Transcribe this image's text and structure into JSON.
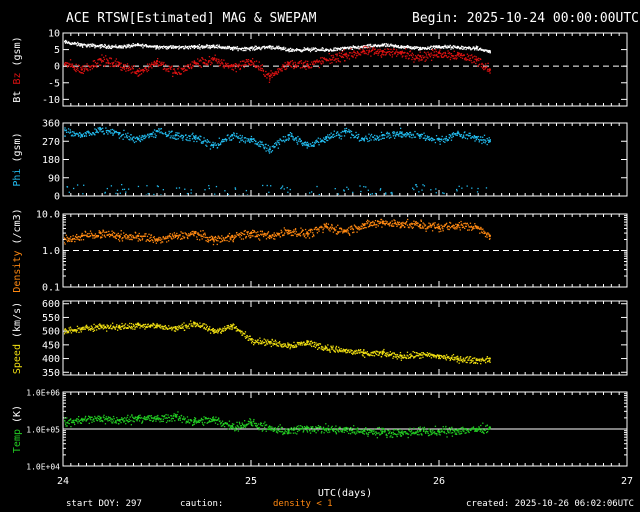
{
  "header": {
    "title": "ACE RTSW[Estimated] MAG & SWEPAM",
    "begin": "Begin: 2025-10-24 00:00:00UTC"
  },
  "footer": {
    "start_doy": "start DOY: 297",
    "caution": "caution:",
    "caution_note": "density < 1",
    "created": "created: 2025-10-26 06:02:06UTC"
  },
  "colors": {
    "bt": "#ffffff",
    "bz": "#dd1111",
    "phi": "#22bbee",
    "density": "#ff8811",
    "speed": "#eedd11",
    "temp": "#22cc22",
    "axes": "#ffffff",
    "caution_note": "#ff8811"
  },
  "chart_data": [
    {
      "type": "scatter",
      "panel": "mag",
      "ylabel_parts": [
        "Bt",
        "Bz",
        "(gsm)"
      ],
      "ylim": [
        -12,
        10
      ],
      "yticks": [
        "10",
        "5",
        "0",
        "-5",
        "-10"
      ],
      "ytick_values": [
        10,
        5,
        0,
        -5,
        -10
      ],
      "reference_line": 0,
      "series": [
        {
          "name": "Bt",
          "x": [
            24.0,
            24.1,
            24.2,
            24.3,
            24.4,
            24.5,
            24.6,
            24.7,
            24.8,
            24.9,
            25.0,
            25.1,
            25.2,
            25.3,
            25.4,
            25.5,
            25.6,
            25.7,
            25.8,
            25.9,
            26.0,
            26.1,
            26.2,
            26.27
          ],
          "y": [
            7.5,
            6.5,
            6.2,
            6.0,
            6.5,
            6.0,
            5.8,
            6.0,
            6.2,
            5.5,
            5.5,
            6.0,
            5.0,
            5.2,
            5.0,
            5.5,
            6.0,
            6.5,
            6.0,
            5.5,
            6.0,
            5.8,
            5.5,
            4.5
          ]
        },
        {
          "name": "Bz",
          "x": [
            24.0,
            24.1,
            24.2,
            24.3,
            24.4,
            24.5,
            24.6,
            24.7,
            24.8,
            24.9,
            25.0,
            25.1,
            25.2,
            25.3,
            25.4,
            25.5,
            25.6,
            25.7,
            25.8,
            25.9,
            26.0,
            26.1,
            26.2,
            26.27
          ],
          "y": [
            1.0,
            -1.0,
            2.0,
            0.5,
            -1.5,
            1.5,
            -2.0,
            1.0,
            2.0,
            0.0,
            1.5,
            -3.0,
            1.0,
            0.5,
            2.0,
            3.5,
            4.5,
            4.5,
            4.0,
            3.0,
            4.0,
            3.5,
            2.0,
            -1.0
          ]
        }
      ]
    },
    {
      "type": "scatter",
      "panel": "phi",
      "ylabel_parts": [
        "Phi",
        "(gsm)"
      ],
      "ylim": [
        0,
        360
      ],
      "yticks": [
        "360",
        "270",
        "180",
        "90",
        "0"
      ],
      "ytick_values": [
        360,
        270,
        180,
        90,
        0
      ],
      "series": [
        {
          "name": "Phi",
          "x": [
            24.0,
            24.1,
            24.2,
            24.3,
            24.4,
            24.5,
            24.6,
            24.7,
            24.8,
            24.9,
            25.0,
            25.1,
            25.2,
            25.3,
            25.4,
            25.5,
            25.6,
            25.7,
            25.8,
            25.9,
            26.0,
            26.1,
            26.2,
            26.27
          ],
          "y": [
            320,
            300,
            330,
            310,
            280,
            320,
            300,
            290,
            250,
            300,
            280,
            230,
            300,
            250,
            290,
            320,
            280,
            300,
            310,
            300,
            280,
            310,
            290,
            270
          ]
        }
      ]
    },
    {
      "type": "scatter",
      "panel": "density",
      "ylabel_parts": [
        "Density",
        "(/cm3)"
      ],
      "yscale": "log",
      "ylim": [
        0.1,
        10
      ],
      "yticks": [
        "10.0",
        "1.0",
        "0.1"
      ],
      "ytick_values": [
        10,
        1,
        0.1
      ],
      "reference_line": 1,
      "series": [
        {
          "name": "Density",
          "x": [
            24.0,
            24.1,
            24.2,
            24.3,
            24.4,
            24.5,
            24.6,
            24.7,
            24.8,
            24.9,
            25.0,
            25.1,
            25.2,
            25.3,
            25.4,
            25.5,
            25.6,
            25.7,
            25.8,
            25.9,
            26.0,
            26.1,
            26.2,
            26.27
          ],
          "y": [
            2.0,
            2.5,
            3.0,
            2.5,
            2.5,
            2.0,
            2.5,
            3.0,
            2.0,
            2.5,
            3.0,
            2.5,
            3.5,
            3.0,
            4.5,
            3.5,
            5.0,
            6.0,
            5.5,
            5.0,
            4.5,
            5.0,
            4.5,
            2.5
          ]
        }
      ]
    },
    {
      "type": "scatter",
      "panel": "speed",
      "ylabel_parts": [
        "Speed",
        "(km/s)"
      ],
      "ylim": [
        340,
        610
      ],
      "yticks": [
        "600",
        "550",
        "500",
        "450",
        "400",
        "350"
      ],
      "ytick_values": [
        600,
        550,
        500,
        450,
        400,
        350
      ],
      "series": [
        {
          "name": "Speed",
          "x": [
            24.0,
            24.1,
            24.2,
            24.3,
            24.4,
            24.5,
            24.6,
            24.7,
            24.8,
            24.9,
            25.0,
            25.1,
            25.2,
            25.3,
            25.4,
            25.5,
            25.6,
            25.7,
            25.8,
            25.9,
            26.0,
            26.1,
            26.2,
            26.27
          ],
          "y": [
            500,
            510,
            520,
            515,
            525,
            520,
            510,
            530,
            500,
            520,
            470,
            460,
            450,
            460,
            440,
            430,
            420,
            420,
            410,
            415,
            410,
            400,
            395,
            400
          ]
        }
      ]
    },
    {
      "type": "scatter",
      "panel": "temp",
      "ylabel_parts": [
        "Temp",
        "(K)"
      ],
      "yscale": "log",
      "ylim": [
        10000,
        1000000
      ],
      "yticks": [
        "1.0E+06",
        "1.0E+05",
        "1.0E+04"
      ],
      "ytick_values": [
        1000000,
        100000,
        10000
      ],
      "reference_line": 100000,
      "series": [
        {
          "name": "Temp",
          "x": [
            24.0,
            24.1,
            24.2,
            24.3,
            24.4,
            24.5,
            24.6,
            24.7,
            24.8,
            24.9,
            25.0,
            25.1,
            25.2,
            25.3,
            25.4,
            25.5,
            25.6,
            25.7,
            25.8,
            25.9,
            26.0,
            26.1,
            26.2,
            26.27
          ],
          "y": [
            150000,
            180000,
            200000,
            170000,
            210000,
            190000,
            220000,
            160000,
            180000,
            120000,
            150000,
            100000,
            90000,
            110000,
            100000,
            95000,
            90000,
            85000,
            80000,
            90000,
            85000,
            95000,
            100000,
            110000
          ]
        }
      ]
    }
  ],
  "xaxis": {
    "label": "UTC(days)",
    "xlim": [
      24,
      27
    ],
    "ticks": [
      "24",
      "25",
      "26",
      "27"
    ],
    "tick_values": [
      24,
      25,
      26,
      27
    ]
  }
}
